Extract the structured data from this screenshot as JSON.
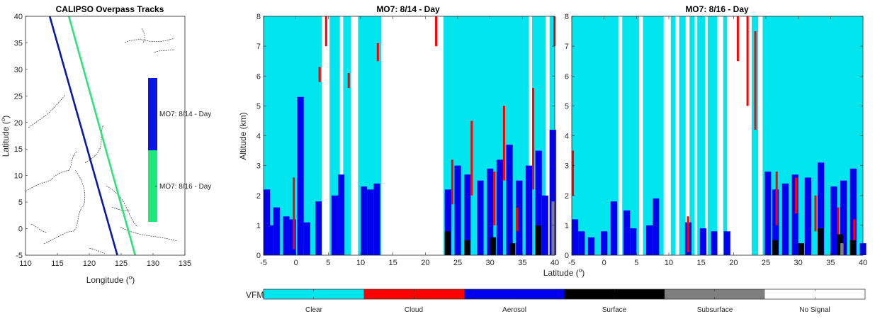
{
  "map": {
    "title": "CALIPSO Overpass Tracks",
    "xlabel": "Longitude (",
    "ylabel": "Latitude (",
    "degree_sup": "o",
    "xlabel_close": ")",
    "ylabel_close": ")",
    "xlim": [
      110,
      135
    ],
    "ylim": [
      -5,
      40
    ],
    "xticks": [
      "110",
      "115",
      "120",
      "125",
      "130",
      "135"
    ],
    "yticks": [
      "-5",
      "0",
      "5",
      "10",
      "15",
      "20",
      "25",
      "30",
      "35",
      "40"
    ],
    "tracks": [
      {
        "name": "MO7: 8/14 - Day",
        "color": "#0a1aa8",
        "from": [
          124.4,
          -5
        ],
        "to": [
          113.8,
          40
        ]
      },
      {
        "name": "MO7: 8/16 - Day",
        "color": "#2ee37a",
        "from": [
          127.2,
          -5
        ],
        "to": [
          116.8,
          40
        ]
      }
    ],
    "colorbar_labels": [
      "MO7: 8/14 - Day",
      "MO7: 8/16 - Day"
    ],
    "colorbar_colors": [
      "#0a14e6",
      "#1ee87a"
    ]
  },
  "chart_data": [
    {
      "type": "heatmap",
      "title": "MO7: 8/14 - Day",
      "ylabel": "Altitude (km)",
      "xlim": [
        -5,
        40
      ],
      "ylim": [
        0,
        8
      ],
      "xticks": [
        "-5",
        "0",
        "5",
        "10",
        "15",
        "20",
        "25",
        "30",
        "35",
        "40"
      ],
      "yticks": [
        "0",
        "1",
        "2",
        "3",
        "4",
        "5",
        "6",
        "7",
        "8"
      ],
      "no_signal_bands": [
        [
          4.0,
          5.2
        ],
        [
          6.8,
          7.3
        ],
        [
          8.5,
          9.6
        ],
        [
          13.2,
          22.8
        ],
        [
          36.0,
          36.5
        ],
        [
          38.6,
          39.2
        ]
      ],
      "aerosol_blocks": [
        [
          -5,
          0,
          2.2
        ],
        [
          -4.5,
          0,
          1.0
        ],
        [
          -3.5,
          0,
          1.6
        ],
        [
          -2,
          0,
          1.3
        ],
        [
          -1,
          0,
          1.2
        ],
        [
          0.2,
          0,
          5.3
        ],
        [
          1.2,
          0,
          1.1
        ],
        [
          3.0,
          0,
          1.8
        ],
        [
          5.5,
          0,
          2.0
        ],
        [
          6.5,
          0,
          2.7
        ],
        [
          10.0,
          0,
          2.3
        ],
        [
          11.0,
          0,
          2.2
        ],
        [
          12.0,
          0,
          2.4
        ],
        [
          23.0,
          0,
          2.2
        ],
        [
          24.5,
          0,
          3.0
        ],
        [
          26.0,
          0,
          2.7
        ],
        [
          28.0,
          0,
          2.5
        ],
        [
          29.5,
          0,
          2.9
        ],
        [
          31.0,
          0,
          3.2
        ],
        [
          32.5,
          0,
          3.7
        ],
        [
          34.0,
          0,
          2.5
        ],
        [
          35.5,
          0,
          3.0
        ],
        [
          37.0,
          0,
          3.5
        ],
        [
          38.0,
          0,
          2.0
        ],
        [
          39.2,
          0,
          4.2
        ]
      ],
      "cloud_marks": [
        [
          -0.5,
          0.2,
          2.6
        ],
        [
          3.5,
          5.8,
          6.3
        ],
        [
          4.5,
          7.0,
          8.0
        ],
        [
          8.0,
          5.6,
          6.1
        ],
        [
          12.5,
          6.5,
          7.1
        ],
        [
          21.5,
          7.0,
          8.0
        ],
        [
          24.0,
          1.7,
          3.2
        ],
        [
          27.0,
          2.0,
          4.5
        ],
        [
          30.5,
          1.0,
          2.8
        ],
        [
          32.0,
          2.5,
          5.0
        ],
        [
          34.0,
          0.8,
          1.6
        ],
        [
          36.5,
          2.2,
          5.6
        ],
        [
          39.8,
          7.0,
          8.0
        ]
      ],
      "surface_segments": [
        [
          23,
          0.8
        ],
        [
          26,
          0.5
        ],
        [
          30,
          0.6
        ],
        [
          33,
          0.4
        ],
        [
          37,
          1.0
        ]
      ],
      "subsurface_segments": [
        [
          39.5,
          1.8
        ]
      ]
    },
    {
      "type": "heatmap",
      "title": "MO7: 8/16 - Day",
      "ylabel": "",
      "xlim": [
        -5,
        40
      ],
      "ylim": [
        0,
        8
      ],
      "xticks": [
        "-5",
        "0",
        "5",
        "10",
        "15",
        "20",
        "25",
        "30",
        "35",
        "40"
      ],
      "yticks": [
        "0",
        "1",
        "2",
        "3",
        "4",
        "5",
        "6",
        "7",
        "8"
      ],
      "no_signal_bands": [
        [
          2.2,
          2.8
        ],
        [
          5.4,
          6.0
        ],
        [
          9.2,
          10.3
        ],
        [
          11.0,
          11.6
        ],
        [
          12.6,
          13.2
        ],
        [
          14.0,
          14.4
        ],
        [
          15.6,
          16.0
        ],
        [
          17.5,
          18.4
        ],
        [
          19.0,
          22.8
        ],
        [
          23.8,
          24.5
        ]
      ],
      "aerosol_blocks": [
        [
          -5,
          0,
          1.2
        ],
        [
          -4,
          0,
          0.8
        ],
        [
          -2.5,
          0,
          0.6
        ],
        [
          -0.5,
          0,
          0.8
        ],
        [
          1.0,
          0,
          1.8
        ],
        [
          3.0,
          0,
          1.5
        ],
        [
          4.0,
          0,
          0.9
        ],
        [
          6.5,
          0,
          1.0
        ],
        [
          7.5,
          0,
          1.9
        ],
        [
          12.5,
          0,
          1.1
        ],
        [
          14.8,
          0,
          0.9
        ],
        [
          16.5,
          0,
          0.8
        ],
        [
          18.5,
          0,
          0.8
        ],
        [
          24.8,
          0,
          2.8
        ],
        [
          26.0,
          0,
          2.2
        ],
        [
          27.5,
          0,
          2.4
        ],
        [
          29.0,
          0,
          2.7
        ],
        [
          31.0,
          0,
          2.6
        ],
        [
          33.0,
          0,
          3.1
        ],
        [
          35.0,
          0,
          2.3
        ],
        [
          36.5,
          0,
          2.5
        ],
        [
          38.0,
          0,
          2.9
        ],
        [
          39.5,
          0,
          0.4
        ]
      ],
      "cloud_marks": [
        [
          -5,
          2.0,
          3.5
        ],
        [
          12.8,
          0.1,
          1.3
        ],
        [
          20.5,
          6.5,
          8.0
        ],
        [
          22.0,
          5.0,
          8.0
        ],
        [
          23.2,
          4.2,
          7.5
        ],
        [
          26.5,
          1.0,
          2.8
        ],
        [
          29.5,
          1.4,
          2.6
        ],
        [
          32.5,
          0.8,
          2.0
        ],
        [
          36.0,
          0.6,
          1.6
        ],
        [
          38.5,
          0.3,
          1.2
        ]
      ],
      "surface_segments": [
        [
          26,
          0.5
        ],
        [
          30,
          0.4
        ],
        [
          33,
          0.9
        ],
        [
          36,
          0.7
        ],
        [
          38,
          0.5
        ]
      ],
      "subsurface_segments": [
        [
          36.5,
          0.4
        ]
      ]
    }
  ],
  "shared_xlabel": "Latitude (",
  "shared_xlabel_close": ")",
  "colorbar": {
    "label": "VFM",
    "categories": [
      "Clear",
      "Cloud",
      "Aerosol",
      "Surface",
      "Subsurface",
      "No Signal"
    ],
    "colors": [
      "#00e5ee",
      "#ff0000",
      "#0000ee",
      "#000000",
      "#7f7f7f",
      "#ffffff"
    ]
  }
}
